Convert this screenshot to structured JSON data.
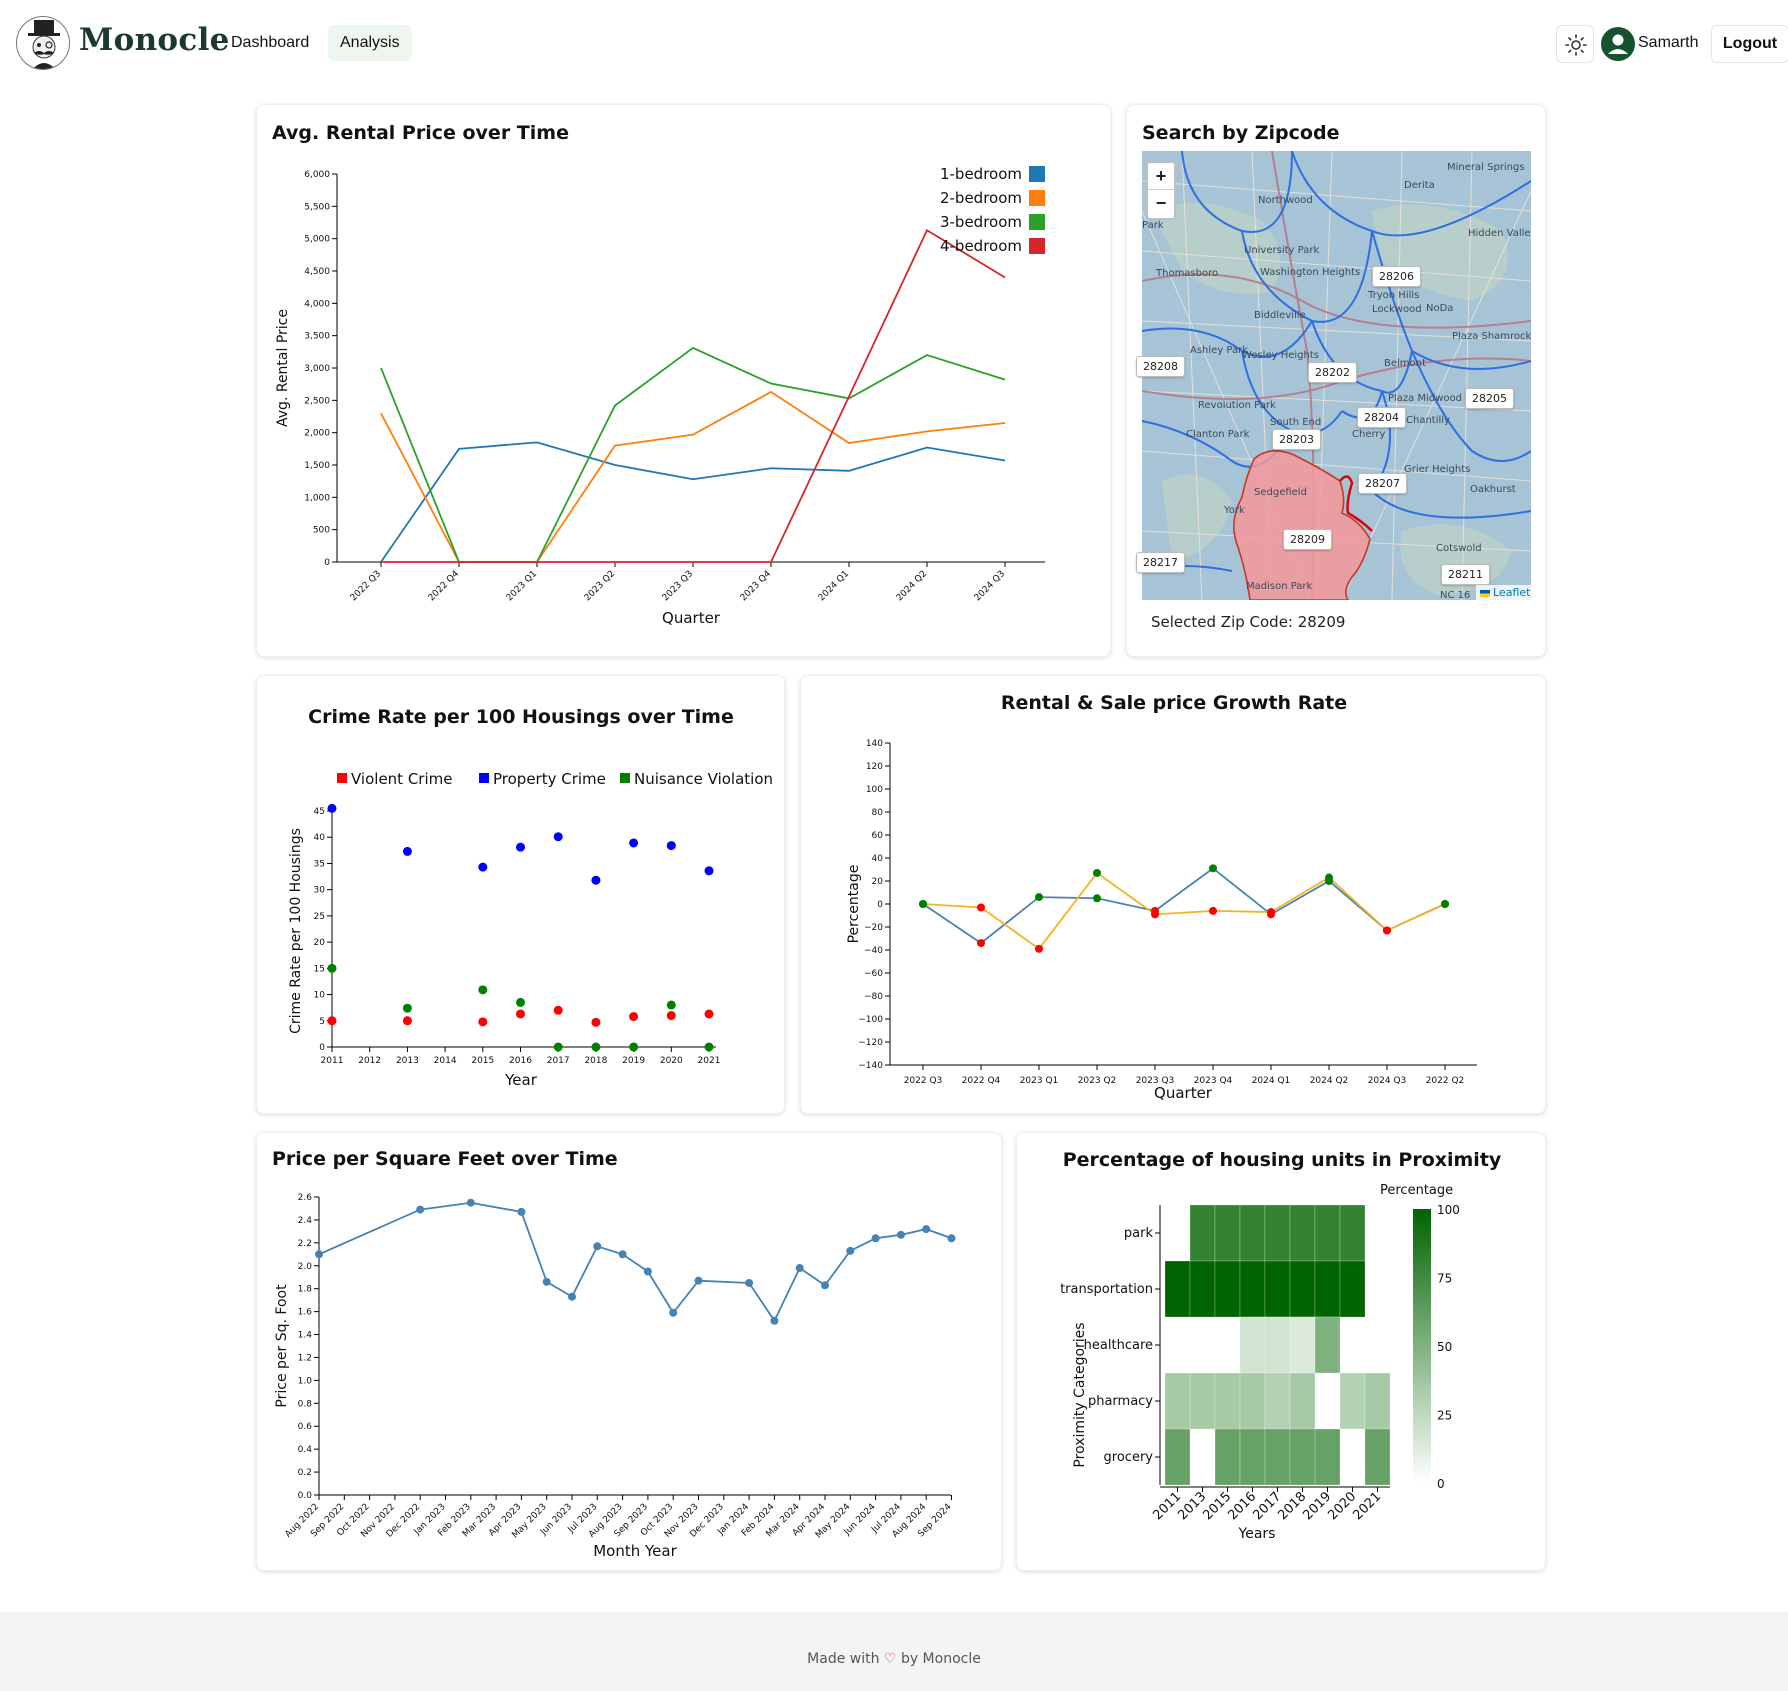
{
  "header": {
    "brand": "Monocle",
    "nav": [
      {
        "label": "Dashboard"
      },
      {
        "label": "Analysis"
      }
    ],
    "user_name": "Samarth",
    "logout_label": "Logout",
    "theme_icon": "sun-icon"
  },
  "rental_card": {
    "title": "Avg. Rental Price over Time",
    "chart_data": {
      "type": "line",
      "title": "Avg. Rental Price over Time",
      "xlabel": "Quarter",
      "ylabel": "Avg. Rental Price",
      "ylim": [
        0,
        6000
      ],
      "yticks": [
        "0",
        "500",
        "1,000",
        "1,500",
        "2,000",
        "2,500",
        "3,000",
        "3,500",
        "4,000",
        "4,500",
        "5,000",
        "5,500",
        "6,000"
      ],
      "categories": [
        "2022 Q3",
        "2022 Q4",
        "2023 Q1",
        "2023 Q2",
        "2023 Q3",
        "2023 Q4",
        "2024 Q1",
        "2024 Q2",
        "2024 Q3"
      ],
      "legend_position": "top-right",
      "series": [
        {
          "name": "1-bedroom",
          "color": "#1f77b4",
          "values": [
            0,
            1750,
            1850,
            1500,
            1280,
            1450,
            1410,
            1770,
            1570
          ]
        },
        {
          "name": "2-bedroom",
          "color": "#ff7f0e",
          "values": [
            2300,
            0,
            0,
            1800,
            1970,
            2630,
            1840,
            2020,
            2150
          ]
        },
        {
          "name": "3-bedroom",
          "color": "#2ca02c",
          "values": [
            3000,
            0,
            0,
            2420,
            3310,
            2760,
            2530,
            3200,
            2820
          ]
        },
        {
          "name": "4-bedroom",
          "color": "#d62728",
          "values": [
            0,
            0,
            0,
            0,
            0,
            0,
            2560,
            5130,
            4400
          ]
        }
      ]
    }
  },
  "map_card": {
    "title": "Search by Zipcode",
    "zoom_in": "+",
    "zoom_out": "−",
    "selected_text": "Selected Zip Code: 28209",
    "attribution": "Leaflet",
    "zip_labels": [
      "28206",
      "28202",
      "28205",
      "28204",
      "28203",
      "28207",
      "28209",
      "28208",
      "28217",
      "28211"
    ],
    "place_labels": [
      "Mineral Springs",
      "Derita",
      "Northwood",
      "Hidden Valley",
      "Park",
      "University Park",
      "Thomasboro",
      "Washington Heights",
      "Tryon Hills",
      "Lockwood",
      "NoDa",
      "Biddleville",
      "Plaza Shamrock",
      "Ashley Park",
      "Wesley Heights",
      "Belmont",
      "Revolution Park",
      "Plaza Midwood",
      "Clanton Park",
      "South End",
      "Chantilly",
      "Cherry",
      "Grier Heights",
      "Oakhurst",
      "Sedgefield",
      "York",
      "Cotswold",
      "Madison Park",
      "NC 16"
    ]
  },
  "crime_card": {
    "title": "Crime Rate per 100 Housings over Time",
    "chart_data": {
      "type": "scatter",
      "title": "Crime Rate per 100 Housings over Time",
      "xlabel": "Year",
      "ylabel": "Crime Rate per 100 Housings",
      "ylim": [
        0,
        45
      ],
      "xlim": [
        2011,
        2021
      ],
      "xticks": [
        "2011",
        "2012",
        "2013",
        "2014",
        "2015",
        "2016",
        "2017",
        "2018",
        "2019",
        "2020",
        "2021"
      ],
      "yticks": [
        "0",
        "5",
        "10",
        "15",
        "20",
        "25",
        "30",
        "35",
        "40",
        "45"
      ],
      "legend_position": "top",
      "series": [
        {
          "name": "Violent Crime",
          "color": "#ff0000",
          "points": [
            [
              2011,
              5
            ],
            [
              2013,
              5
            ],
            [
              2015,
              4.8
            ],
            [
              2016,
              6.3
            ],
            [
              2017,
              7
            ],
            [
              2018,
              4.7
            ],
            [
              2019,
              5.8
            ],
            [
              2020,
              6
            ],
            [
              2021,
              6.3
            ]
          ]
        },
        {
          "name": "Property Crime",
          "color": "#0000ff",
          "points": [
            [
              2011,
              45.5
            ],
            [
              2013,
              37.3
            ],
            [
              2015,
              34.3
            ],
            [
              2016,
              38.1
            ],
            [
              2017,
              40.1
            ],
            [
              2018,
              31.8
            ],
            [
              2019,
              38.9
            ],
            [
              2020,
              38.4
            ],
            [
              2021,
              33.6
            ]
          ]
        },
        {
          "name": "Nuisance Violation",
          "color": "#008000",
          "points": [
            [
              2011,
              15
            ],
            [
              2013,
              7.4
            ],
            [
              2015,
              10.9
            ],
            [
              2016,
              8.5
            ],
            [
              2017,
              0
            ],
            [
              2018,
              0
            ],
            [
              2019,
              0
            ],
            [
              2020,
              8
            ],
            [
              2021,
              0
            ]
          ]
        }
      ]
    }
  },
  "growth_card": {
    "title": "Rental & Sale price Growth Rate",
    "chart_data": {
      "type": "line",
      "title": "Rental & Sale price Growth Rate",
      "xlabel": "Quarter",
      "ylabel": "Percentage",
      "ylim": [
        -140,
        140
      ],
      "yticks": [
        "−140",
        "−120",
        "−100",
        "−80",
        "−60",
        "−40",
        "−20",
        "0",
        "20",
        "40",
        "60",
        "80",
        "100",
        "120",
        "140"
      ],
      "categories": [
        "2022 Q3",
        "2022 Q4",
        "2023 Q1",
        "2023 Q2",
        "2023 Q3",
        "2023 Q4",
        "2024 Q1",
        "2024 Q2",
        "2024 Q3",
        "2022 Q2"
      ],
      "positive_color": "#008000",
      "negative_color": "#ff0000",
      "series": [
        {
          "color": "#4682b4",
          "values": [
            0,
            -34,
            6,
            5,
            -6,
            31,
            -9,
            20,
            -23,
            0
          ]
        },
        {
          "color": "#f5b324",
          "values": [
            0,
            -3,
            -39,
            27,
            -9,
            -6,
            -7,
            23,
            -23,
            0
          ]
        }
      ]
    }
  },
  "sqft_card": {
    "title": "Price per Square Feet over Time",
    "chart_data": {
      "type": "line",
      "title": "Price per Square Feet over Time",
      "xlabel": "Month Year",
      "ylabel": "Price per Sq. Foot",
      "ylim": [
        0,
        2.6
      ],
      "yticks": [
        "0.0",
        "0.2",
        "0.4",
        "0.6",
        "0.8",
        "1.0",
        "1.2",
        "1.4",
        "1.6",
        "1.8",
        "2.0",
        "2.2",
        "2.4",
        "2.6"
      ],
      "categories": [
        "Aug 2022",
        "Sep 2022",
        "Oct 2022",
        "Nov 2022",
        "Dec 2022",
        "Jan 2023",
        "Feb 2023",
        "Mar 2023",
        "Apr 2023",
        "May 2023",
        "Jun 2023",
        "Jul 2023",
        "Aug 2023",
        "Sep 2023",
        "Oct 2023",
        "Nov 2023",
        "Dec 2023",
        "Jan 2024",
        "Feb 2024",
        "Mar 2024",
        "Apr 2024",
        "May 2024",
        "Jun 2024",
        "Jul 2024",
        "Aug 2024",
        "Sep 2024"
      ],
      "color": "#4682b4",
      "points": [
        [
          0,
          2.1
        ],
        [
          4,
          2.49
        ],
        [
          6,
          2.55
        ],
        [
          8,
          2.47
        ],
        [
          9,
          1.86
        ],
        [
          10,
          1.73
        ],
        [
          11,
          2.17
        ],
        [
          12,
          2.1
        ],
        [
          13,
          1.95
        ],
        [
          14,
          1.59
        ],
        [
          15,
          1.87
        ],
        [
          17,
          1.85
        ],
        [
          18,
          1.52
        ],
        [
          19,
          1.98
        ],
        [
          20,
          1.83
        ],
        [
          21,
          2.13
        ],
        [
          22,
          2.24
        ],
        [
          23,
          2.27
        ],
        [
          24,
          2.32
        ],
        [
          25,
          2.24
        ]
      ]
    }
  },
  "proximity_card": {
    "title": "Percentage of housing units in Proximity",
    "chart_data": {
      "type": "heatmap",
      "title": "Percentage of housing units in Proximity",
      "xlabel": "Years",
      "ylabel": "Proximity Categories",
      "legend_title": "Percentage",
      "legend_ticks": [
        "0",
        "25",
        "50",
        "75",
        "100"
      ],
      "x": [
        "2011",
        "2013",
        "2015",
        "2016",
        "2017",
        "2018",
        "2019",
        "2020",
        "2021"
      ],
      "y": [
        "park",
        "transportation",
        "healthcare",
        "pharmacy",
        "grocery"
      ],
      "values": [
        [
          null,
          80,
          80,
          80,
          80,
          80,
          80,
          80,
          null
        ],
        [
          100,
          100,
          100,
          100,
          100,
          100,
          100,
          100,
          null
        ],
        [
          null,
          null,
          null,
          18,
          18,
          14,
          50,
          null,
          null
        ],
        [
          35,
          35,
          35,
          35,
          30,
          35,
          null,
          30,
          35
        ],
        [
          60,
          null,
          60,
          60,
          60,
          60,
          60,
          null,
          60
        ]
      ]
    }
  },
  "footer": {
    "prefix": "Made with",
    "heart": "♡",
    "suffix": "by Monocle"
  }
}
